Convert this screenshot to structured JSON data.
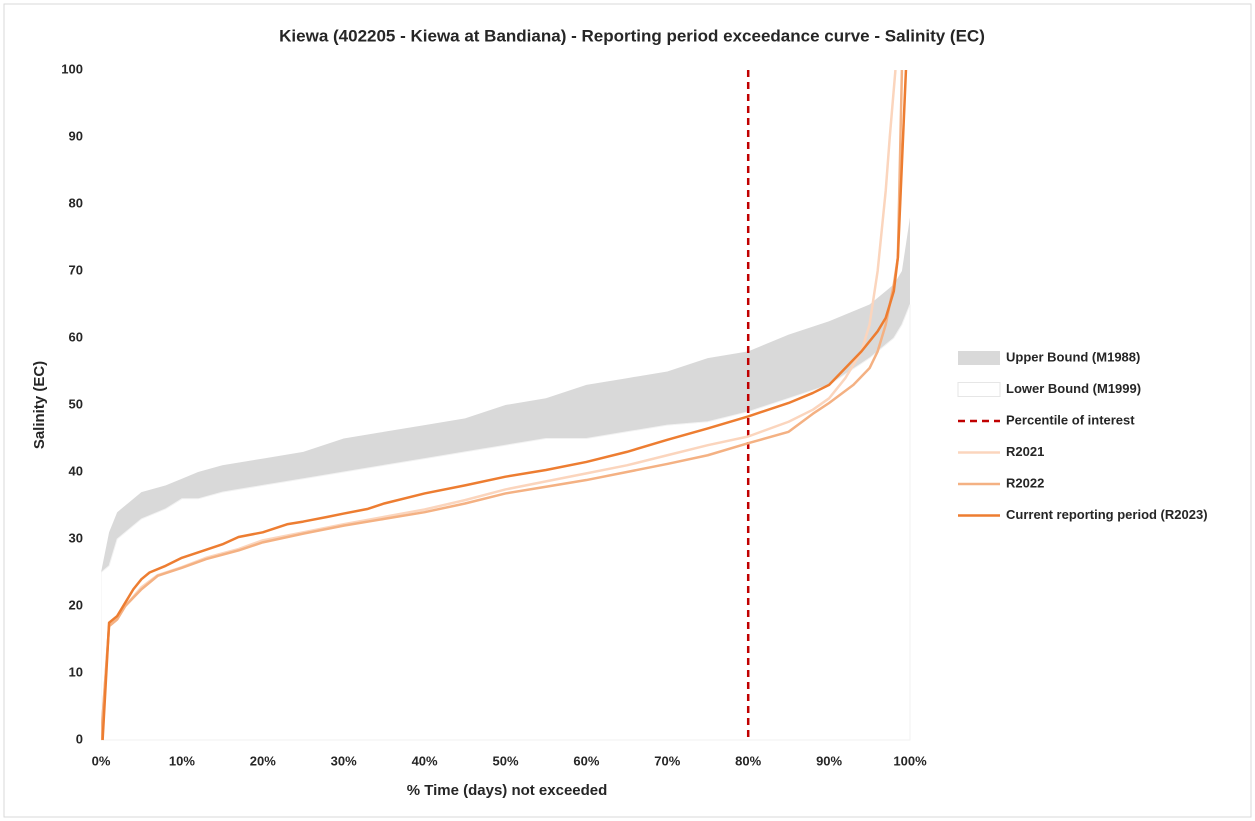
{
  "chart_data": {
    "type": "exceedance",
    "title": "Kiewa (402205 - Kiewa at Bandiana) - Reporting period exceedance curve - Salinity (EC)",
    "x_label": "% Time (days) not exceeded",
    "y_label": "Salinity (EC)",
    "xlim": [
      0,
      100
    ],
    "ylim": [
      0,
      100
    ],
    "xticks": [
      {
        "value": 0,
        "label": "0%"
      },
      {
        "value": 10,
        "label": "10%"
      },
      {
        "value": 20,
        "label": "20%"
      },
      {
        "value": 30,
        "label": "30%"
      },
      {
        "value": 40,
        "label": "40%"
      },
      {
        "value": 50,
        "label": "50%"
      },
      {
        "value": 60,
        "label": "60%"
      },
      {
        "value": 70,
        "label": "70%"
      },
      {
        "value": 80,
        "label": "80%"
      },
      {
        "value": 90,
        "label": "90%"
      },
      {
        "value": 100,
        "label": "100%"
      }
    ],
    "yticks": [
      0,
      10,
      20,
      30,
      40,
      50,
      60,
      70,
      80,
      90,
      100
    ],
    "legend": "right",
    "series": [
      {
        "name": "Upper Bound (M1988)",
        "kind": "area",
        "color": "#d9d9d9",
        "x": [
          0,
          1,
          2,
          5,
          8,
          10,
          12,
          15,
          20,
          25,
          30,
          35,
          40,
          45,
          50,
          55,
          60,
          65,
          70,
          75,
          80,
          85,
          90,
          95,
          98,
          99,
          100
        ],
        "values": [
          25,
          31,
          34,
          37,
          38,
          39,
          40,
          41,
          42,
          43,
          45,
          46,
          47,
          48,
          50,
          51,
          53,
          54,
          55,
          57,
          58,
          60.5,
          62.5,
          65,
          68,
          70,
          78
        ]
      },
      {
        "name": "Lower Bound (M1999)",
        "kind": "area",
        "color": "#ffffff",
        "x": [
          0,
          1,
          2,
          5,
          8,
          10,
          12,
          15,
          20,
          25,
          30,
          35,
          40,
          45,
          50,
          55,
          60,
          65,
          70,
          75,
          80,
          85,
          90,
          95,
          98,
          99,
          100
        ],
        "values": [
          25,
          26,
          30,
          33,
          34.5,
          36,
          36,
          37,
          38,
          39,
          40,
          41,
          42,
          43,
          44,
          45,
          45,
          46,
          47,
          47.5,
          49,
          51,
          53,
          57,
          60,
          62,
          65
        ]
      },
      {
        "name": "Percentile of interest",
        "kind": "vline",
        "color": "#c00000",
        "x": [
          80
        ]
      },
      {
        "name": "R2021",
        "kind": "line",
        "color": "#fbd5bd",
        "x": [
          0,
          1,
          2,
          3,
          5,
          7,
          10,
          13,
          17,
          20,
          25,
          30,
          35,
          40,
          45,
          50,
          55,
          60,
          65,
          70,
          75,
          80,
          85,
          88,
          90,
          92,
          94,
          95,
          96,
          97,
          97.5,
          98.2
        ],
        "values": [
          0,
          17,
          18,
          20,
          22.8,
          24.6,
          25.8,
          27.2,
          28.5,
          29.8,
          31,
          32.2,
          33.3,
          34.4,
          35.8,
          37.4,
          38.6,
          39.8,
          41,
          42.5,
          44,
          45.3,
          47.5,
          49.3,
          51,
          54,
          58,
          62,
          70,
          82,
          90,
          100
        ]
      },
      {
        "name": "R2022",
        "kind": "line",
        "color": "#f4b183",
        "x": [
          0,
          1,
          2,
          3,
          5,
          7,
          10,
          13,
          17,
          20,
          25,
          30,
          35,
          40,
          45,
          50,
          55,
          60,
          65,
          70,
          75,
          80,
          85,
          88,
          90,
          93,
          95,
          96,
          97,
          98,
          98.5,
          99
        ],
        "values": [
          0,
          17,
          18,
          20,
          22.5,
          24.5,
          25.7,
          27,
          28.3,
          29.5,
          30.8,
          32,
          33,
          34,
          35.3,
          36.8,
          37.8,
          38.8,
          40,
          41.2,
          42.5,
          44.3,
          46,
          48.7,
          50.3,
          53,
          55.5,
          58,
          62,
          68,
          72,
          100
        ]
      },
      {
        "name": "Current reporting period (R2023)",
        "kind": "line",
        "color": "#ed7d31",
        "x": [
          0.2,
          1,
          2,
          3,
          4,
          5,
          6,
          8,
          10,
          12,
          15,
          17,
          20,
          23,
          25,
          28,
          30,
          33,
          35,
          40,
          45,
          50,
          55,
          60,
          65,
          70,
          75,
          80,
          85,
          88,
          90,
          92,
          94,
          96,
          97,
          98,
          98.5,
          99.5
        ],
        "values": [
          0,
          17.5,
          18.5,
          20.5,
          22.5,
          24,
          25,
          26,
          27.2,
          28,
          29.2,
          30.3,
          31,
          32.2,
          32.6,
          33.3,
          33.8,
          34.5,
          35.3,
          36.8,
          38,
          39.3,
          40.3,
          41.5,
          43,
          44.8,
          46.5,
          48.3,
          50.3,
          51.8,
          53,
          55.5,
          58,
          61,
          63,
          67,
          72,
          100
        ]
      }
    ]
  }
}
